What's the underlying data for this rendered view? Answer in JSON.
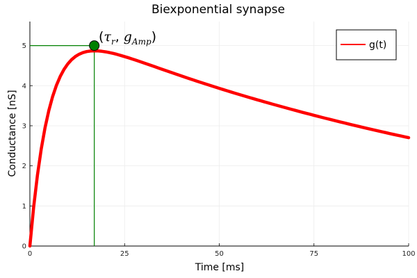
{
  "chart_data": {
    "type": "line",
    "title": "Biexponential synapse",
    "xlabel": "Time [ms]",
    "ylabel": "Conductance [nS]",
    "xlim": [
      0,
      100
    ],
    "ylim": [
      0,
      5.6
    ],
    "xticks": [
      0,
      25,
      50,
      75,
      100
    ],
    "yticks": [
      0,
      1,
      2,
      3,
      4,
      5
    ],
    "grid": true,
    "legend_position": "top-right",
    "series": [
      {
        "name": "g(t)",
        "color": "#ff0000",
        "x": [
          0,
          1,
          2,
          3,
          4,
          5,
          6,
          7,
          8,
          9,
          10,
          11,
          12,
          13,
          14,
          15,
          16,
          17,
          18,
          19,
          20,
          21,
          22,
          23,
          24,
          25,
          26,
          27,
          28,
          29,
          30,
          31,
          32,
          33,
          34,
          35,
          36,
          37,
          38,
          39,
          40,
          41,
          42,
          43,
          44,
          45,
          46,
          47,
          48,
          49,
          50,
          51,
          52,
          53,
          54,
          55,
          56,
          57,
          58,
          59,
          60,
          61,
          62,
          63,
          64,
          65,
          66,
          67,
          68,
          69,
          70,
          71,
          72,
          73,
          74,
          75,
          76,
          77,
          78,
          79,
          80,
          81,
          82,
          83,
          84,
          85,
          86,
          87,
          88,
          89,
          90,
          91,
          92,
          93,
          94,
          95,
          96,
          97,
          98,
          99,
          100
        ],
        "y": [
          0,
          0.975,
          1.772,
          2.422,
          2.951,
          3.38,
          3.728,
          4.007,
          4.229,
          4.405,
          4.542,
          4.648,
          4.727,
          4.785,
          4.825,
          4.851,
          4.865,
          4.87,
          4.867,
          4.858,
          4.844,
          4.826,
          4.805,
          4.781,
          4.754,
          4.726,
          4.697,
          4.666,
          4.635,
          4.603,
          4.571,
          4.538,
          4.505,
          4.472,
          4.439,
          4.406,
          4.373,
          4.34,
          4.308,
          4.275,
          4.243,
          4.211,
          4.179,
          4.148,
          4.116,
          4.085,
          4.054,
          4.024,
          3.994,
          3.964,
          3.934,
          3.904,
          3.875,
          3.846,
          3.817,
          3.788,
          3.76,
          3.732,
          3.704,
          3.677,
          3.649,
          3.622,
          3.595,
          3.568,
          3.541,
          3.515,
          3.489,
          3.463,
          3.437,
          3.411,
          3.386,
          3.36,
          3.335,
          3.31,
          3.286,
          3.261,
          3.237,
          3.212,
          3.188,
          3.165,
          3.141,
          3.117,
          3.094,
          3.071,
          3.048,
          3.025,
          3.003,
          2.98,
          2.958,
          2.936,
          2.914,
          2.892,
          2.87,
          2.849,
          2.828,
          2.806,
          2.785,
          2.765,
          2.744,
          2.723,
          2.703
        ]
      }
    ],
    "annotations": [
      {
        "kind": "marker",
        "x": 17,
        "y": 5.0,
        "color": "#008000"
      },
      {
        "kind": "hline",
        "y": 5.0,
        "x_from": 0,
        "x_to": 17,
        "color": "#008000"
      },
      {
        "kind": "vline",
        "x": 17,
        "y_from": 0,
        "y_to": 5.0,
        "color": "#008000"
      }
    ]
  },
  "annotation_label": {
    "open": "(",
    "tau": "τ",
    "tau_sub": "r",
    "comma": ",",
    "g": "g",
    "g_sub": "Amp",
    "close": ")"
  },
  "legend": {
    "label": "g(t)"
  }
}
